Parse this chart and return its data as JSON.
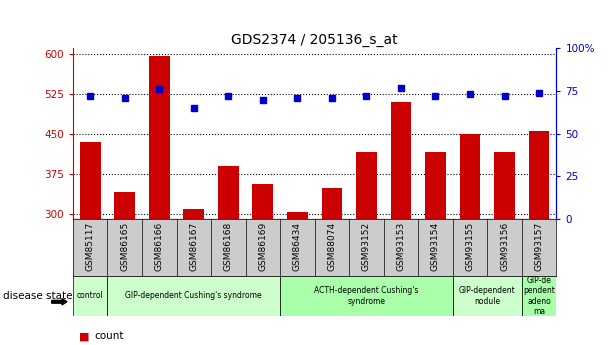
{
  "title": "GDS2374 / 205136_s_at",
  "samples": [
    "GSM85117",
    "GSM86165",
    "GSM86166",
    "GSM86167",
    "GSM86168",
    "GSM86169",
    "GSM86434",
    "GSM88074",
    "GSM93152",
    "GSM93153",
    "GSM93154",
    "GSM93155",
    "GSM93156",
    "GSM93157"
  ],
  "counts": [
    435,
    340,
    595,
    308,
    390,
    355,
    303,
    348,
    415,
    510,
    415,
    450,
    415,
    455
  ],
  "percentiles": [
    72,
    71,
    76,
    65,
    72,
    70,
    71,
    71,
    72,
    77,
    72,
    73,
    72,
    74
  ],
  "ylim_left": [
    290,
    610
  ],
  "ylim_right": [
    0,
    100
  ],
  "yticks_left": [
    300,
    375,
    450,
    525,
    600
  ],
  "yticks_right": [
    0,
    25,
    50,
    75,
    100
  ],
  "bar_color": "#cc0000",
  "dot_color": "#0000cc",
  "plot_bg": "#ffffff",
  "xlabels_bg": "#cccccc",
  "disease_groups": [
    {
      "label": "control",
      "start": 0,
      "end": 1,
      "color": "#ccffcc"
    },
    {
      "label": "GIP-dependent Cushing's syndrome",
      "start": 1,
      "end": 6,
      "color": "#ccffcc"
    },
    {
      "label": "ACTH-dependent Cushing's\nsyndrome",
      "start": 6,
      "end": 11,
      "color": "#aaffaa"
    },
    {
      "label": "GIP-dependent\nnodule",
      "start": 11,
      "end": 13,
      "color": "#ccffcc"
    },
    {
      "label": "GIP-de\npendent\nadeno\nma",
      "start": 13,
      "end": 14,
      "color": "#aaffaa"
    }
  ],
  "fig_bg": "#ffffff",
  "legend_count_color": "#cc0000",
  "legend_pct_color": "#0000cc"
}
